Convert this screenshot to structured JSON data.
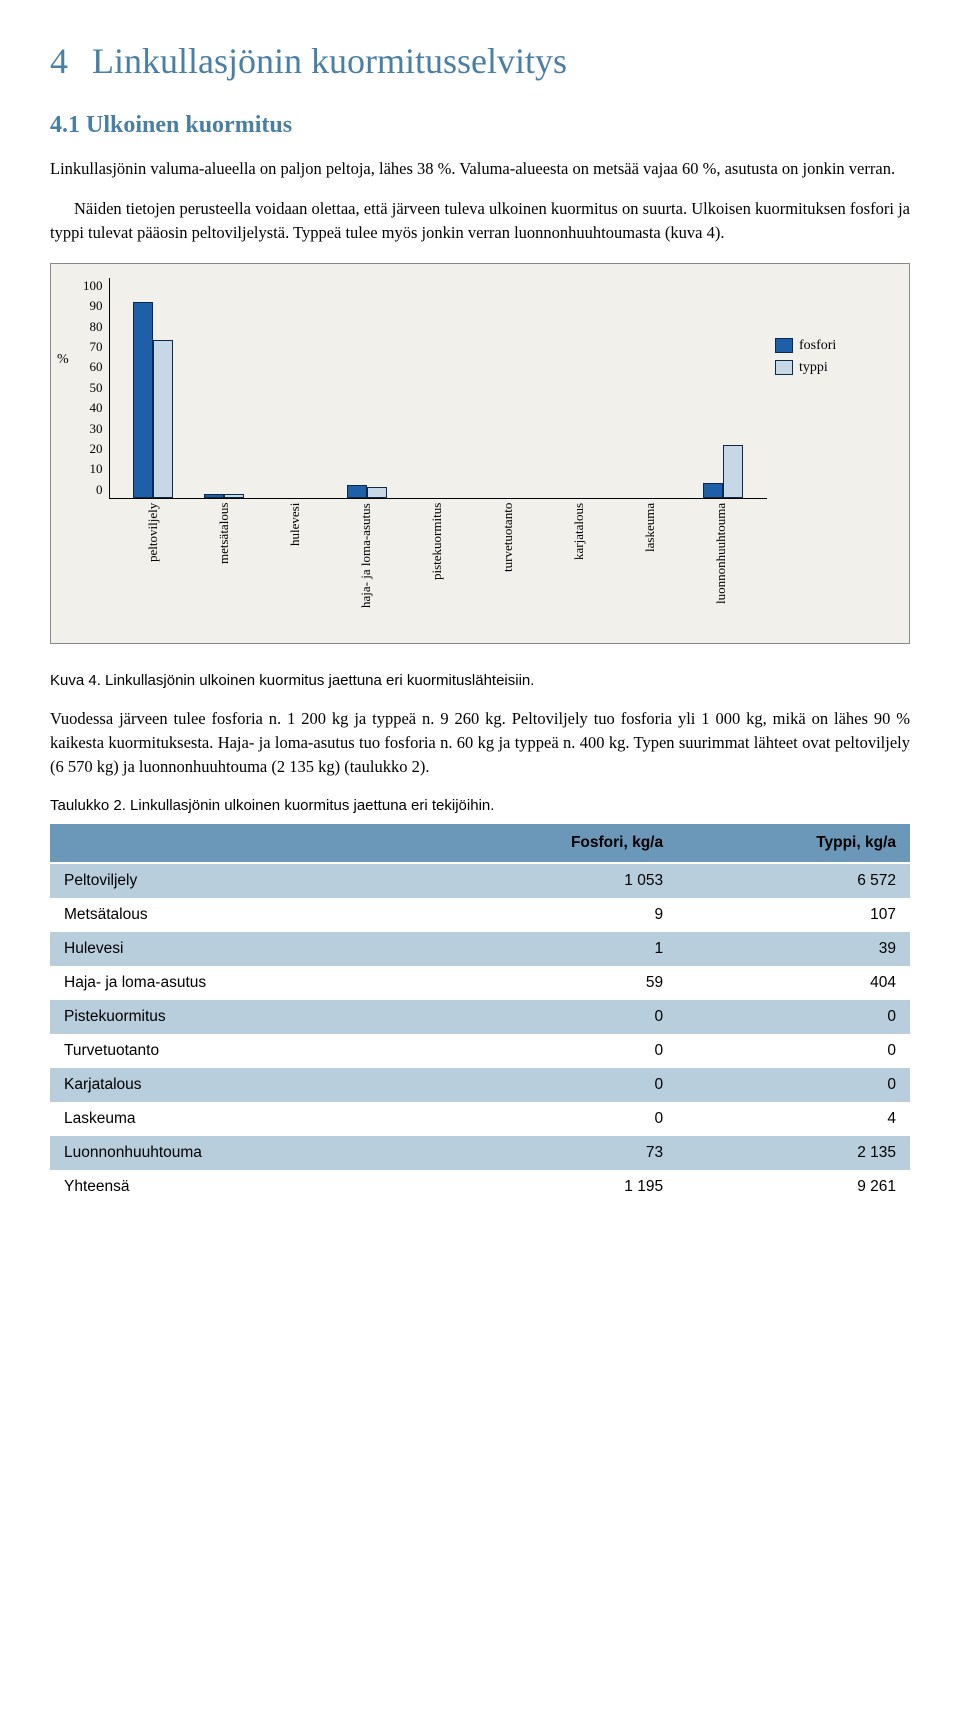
{
  "chapter": {
    "number": "4",
    "title": "Linkullasjönin kuormitusselvitys"
  },
  "section": {
    "number": "4.1",
    "title": "Ulkoinen kuormitus"
  },
  "para1": "Linkullasjönin valuma-alueella on paljon peltoja, lähes 38 %. Valuma-alueesta on metsää vajaa 60 %, asutusta on jonkin verran.",
  "para2": "Näiden tietojen perusteella voidaan olettaa, että järveen tuleva ulkoinen kuormitus on suurta. Ulkoisen kuormituksen fosfori ja typpi tulevat pääosin peltoviljelystä. Typpeä tulee myös jonkin verran luonnonhuuhtoumasta (kuva 4).",
  "chart": {
    "type": "bar",
    "y_label": "%",
    "y_ticks": [
      "100",
      "90",
      "80",
      "70",
      "60",
      "50",
      "40",
      "30",
      "20",
      "10",
      "0"
    ],
    "ylim_max": 100,
    "categories": [
      "peltoviljely",
      "metsätalous",
      "hulevesi",
      "haja- ja loma-asutus",
      "pistekuormitus",
      "turvetuotanto",
      "karjatalous",
      "laskeuma",
      "luonnonhuuhtouma"
    ],
    "fosfori_values": [
      88,
      1,
      0,
      5,
      0,
      0,
      0,
      0,
      6
    ],
    "typpi_values": [
      71,
      1,
      0,
      4,
      0,
      0,
      0,
      0,
      23
    ],
    "fosfori_color": "#1f5fa8",
    "typpi_color": "#c7d7e6",
    "bar_border": "#0b2a4a",
    "background": "#f2f0eb",
    "legend": {
      "fosfori": "fosfori",
      "typpi": "typpi"
    }
  },
  "fig_caption": "Kuva 4. Linkullasjönin ulkoinen kuormitus jaettuna eri kuormituslähteisiin.",
  "para3": "Vuodessa järveen tulee fosforia n. 1 200 kg ja typpeä n. 9 260 kg. Peltoviljely tuo fosforia yli 1 000 kg, mikä on lähes 90 % kaikesta kuormituksesta. Haja- ja loma-asutus tuo fosforia  n. 60 kg ja typpeä n. 400 kg. Typen suurimmat lähteet ovat peltoviljely (6 570 kg) ja luonnonhuuhtouma (2 135 kg) (taulukko 2).",
  "table_caption": "Taulukko 2. Linkullasjönin ulkoinen kuormitus jaettuna eri tekijöihin.",
  "table": {
    "header_bg": "#6b98b8",
    "shade_bg": "#b8cedd",
    "columns": [
      "",
      "Fosfori, kg/a",
      "Typpi, kg/a"
    ],
    "rows": [
      [
        "Peltoviljely",
        "1 053",
        "6 572"
      ],
      [
        "Metsätalous",
        "9",
        "107"
      ],
      [
        "Hulevesi",
        "1",
        "39"
      ],
      [
        "Haja- ja loma-asutus",
        "59",
        "404"
      ],
      [
        "Pistekuormitus",
        "0",
        "0"
      ],
      [
        "Turvetuotanto",
        "0",
        "0"
      ],
      [
        "Karjatalous",
        "0",
        "0"
      ],
      [
        "Laskeuma",
        "0",
        "4"
      ],
      [
        "Luonnonhuuhtouma",
        "73",
        "2 135"
      ],
      [
        "Yhteensä",
        "1 195",
        "9 261"
      ]
    ]
  }
}
